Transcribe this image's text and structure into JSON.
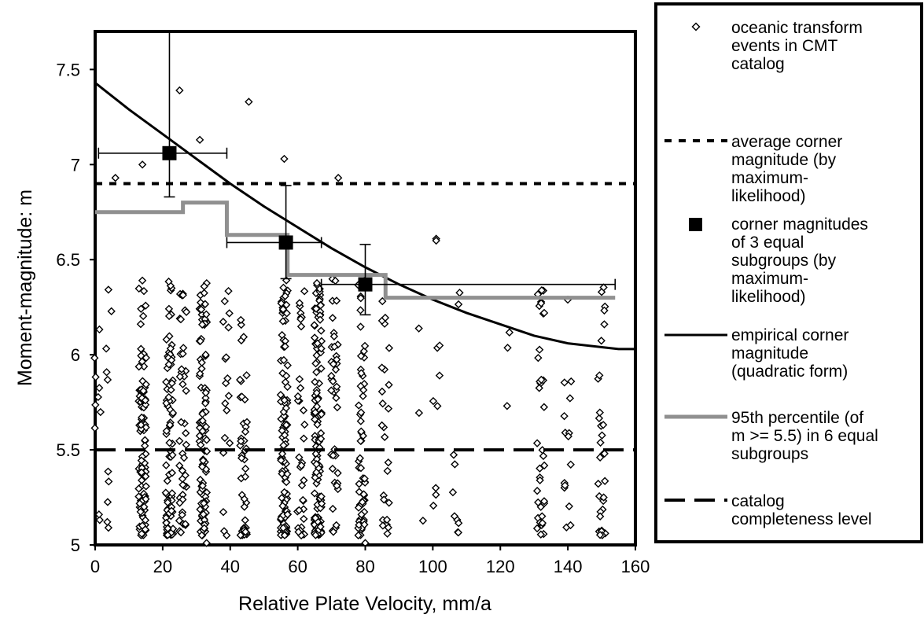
{
  "chart_data": {
    "type": "scatter",
    "title": "",
    "xlabel": "Relative Plate Velocity, mm/a",
    "ylabel": "Moment-magnitude: m",
    "xlim": [
      0,
      160
    ],
    "ylim": [
      5,
      7.7
    ],
    "x_ticks": [
      "0",
      "20",
      "40",
      "60",
      "80",
      "100",
      "120",
      "140",
      "160"
    ],
    "y_ticks": [
      "5",
      "5.5",
      "6",
      "6.5",
      "7",
      "7.5"
    ],
    "grid": false,
    "legend_position": "right",
    "series": [
      {
        "name": "oceanic transform events in CMT catalog",
        "kind": "points",
        "marker": "open-diamond",
        "color": "#000000",
        "clusters": [
          {
            "x": 0.5,
            "count": 10
          },
          {
            "x": 4,
            "count": 10
          },
          {
            "x": 14,
            "count": 95
          },
          {
            "x": 22,
            "count": 80
          },
          {
            "x": 26,
            "count": 45
          },
          {
            "x": 32,
            "count": 95
          },
          {
            "x": 39,
            "count": 18
          },
          {
            "x": 44,
            "count": 45
          },
          {
            "x": 56,
            "count": 110
          },
          {
            "x": 61,
            "count": 35
          },
          {
            "x": 66,
            "count": 130
          },
          {
            "x": 71,
            "count": 40
          },
          {
            "x": 79,
            "count": 60
          },
          {
            "x": 86,
            "count": 25
          },
          {
            "x": 96,
            "count": 3
          },
          {
            "x": 101,
            "count": 8
          },
          {
            "x": 107,
            "count": 10
          },
          {
            "x": 123,
            "count": 3
          },
          {
            "x": 132,
            "count": 35
          },
          {
            "x": 140,
            "count": 15
          },
          {
            "x": 150,
            "count": 30
          }
        ],
        "notable_points": [
          [
            25,
            7.39
          ],
          [
            45.5,
            7.33
          ],
          [
            31,
            7.13
          ],
          [
            56,
            7.03
          ],
          [
            72,
            6.93
          ],
          [
            101,
            6.61
          ],
          [
            101,
            6.6
          ],
          [
            133,
            6.22
          ],
          [
            150,
            6.33
          ],
          [
            33,
            5.01
          ],
          [
            80,
            5.01
          ],
          [
            6,
            6.93
          ],
          [
            14,
            7.0
          ]
        ]
      },
      {
        "name": "average corner magnitude (by maximum-likelihood)",
        "kind": "hline",
        "style": "short-dash",
        "y": 6.9,
        "color": "#000000"
      },
      {
        "name": "corner magnitudes of 3 equal subgroups (by maximum-likelihood)",
        "kind": "points-with-errorbars",
        "marker": "filled-square",
        "color": "#000000",
        "points": [
          {
            "x": 22,
            "y": 7.06,
            "xerr": [
              1,
              39
            ],
            "yerr": [
              6.83,
              7.7
            ]
          },
          {
            "x": 56.5,
            "y": 6.59,
            "xerr": [
              39,
              67
            ],
            "yerr": [
              6.4,
              6.89
            ]
          },
          {
            "x": 80,
            "y": 6.37,
            "xerr": [
              67,
              154
            ],
            "yerr": [
              6.21,
              6.58
            ]
          }
        ]
      },
      {
        "name": "empirical corner magnitude (quadratic form)",
        "kind": "curve",
        "color": "#000000",
        "x": [
          0,
          10,
          20,
          30,
          40,
          50,
          60,
          70,
          80,
          90,
          100,
          110,
          120,
          130,
          140,
          150,
          155,
          160
        ],
        "y": [
          7.43,
          7.29,
          7.16,
          7.03,
          6.9,
          6.78,
          6.67,
          6.56,
          6.46,
          6.37,
          6.29,
          6.22,
          6.16,
          6.1,
          6.06,
          6.04,
          6.03,
          6.03
        ]
      },
      {
        "name": "95th percentile (of m >= 5.5) in 6 equal subgroups",
        "kind": "step",
        "color": "#909090",
        "x": [
          0,
          26,
          26,
          33,
          33,
          39,
          39,
          48,
          48,
          57,
          57,
          79,
          79,
          86,
          86,
          154
        ],
        "y": [
          6.75,
          6.75,
          6.8,
          6.8,
          6.8,
          6.8,
          6.63,
          6.63,
          6.63,
          6.63,
          6.42,
          6.42,
          6.42,
          6.42,
          6.3,
          6.3
        ]
      },
      {
        "name": "catalog completeness level",
        "kind": "hline",
        "style": "long-dash",
        "y": 5.5,
        "color": "#000000"
      }
    ]
  },
  "legend": {
    "items": [
      {
        "key": "oceanic-transform-events",
        "lines": [
          "oceanic transform",
          "events in CMT",
          "catalog"
        ]
      },
      {
        "key": "average-corner-magnitude",
        "lines": [
          "average corner",
          "magnitude (by",
          "maximum-",
          "likelihood)"
        ]
      },
      {
        "key": "corner-magnitudes-3-subgroups",
        "lines": [
          "corner magnitudes",
          "of 3 equal",
          "subgroups (by",
          "maximum-",
          "likelihood)"
        ]
      },
      {
        "key": "empirical-corner-magnitude",
        "lines": [
          "empirical corner",
          "magnitude",
          "(quadratic form)"
        ]
      },
      {
        "key": "95th-percentile",
        "lines": [
          "95th percentile (of",
          "m >= 5.5) in 6 equal",
          "subgroups"
        ]
      },
      {
        "key": "catalog-completeness",
        "lines": [
          "catalog",
          "completeness level"
        ]
      }
    ]
  }
}
